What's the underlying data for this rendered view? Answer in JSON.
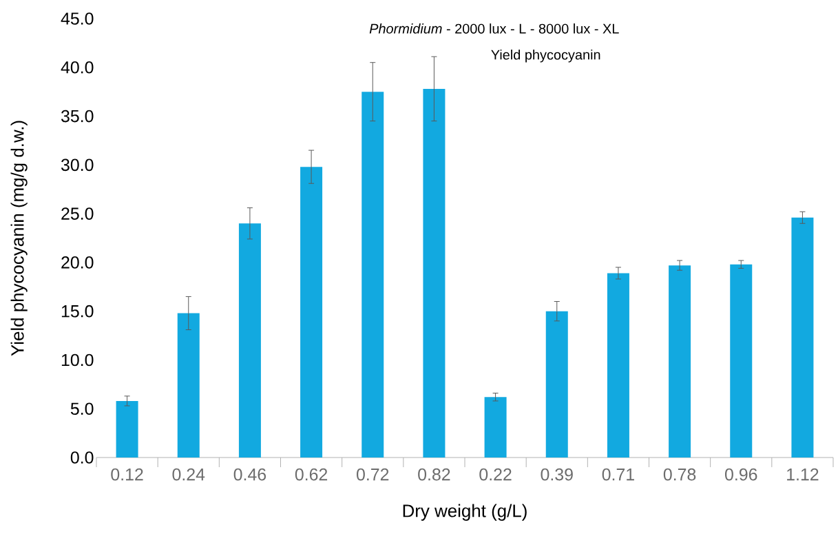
{
  "chart_data": {
    "type": "bar",
    "title": "*Phormidium* - 2000 lux - L                    -                    8000 lux - XL",
    "subtitle": "Yield phycocyanin",
    "xlabel": "Dry weight (g/L)",
    "ylabel": "Yield phycocyanin (mg/g d.w.)",
    "categories": [
      "0.12",
      "0.24",
      "0.46",
      "0.62",
      "0.72",
      "0.82",
      "0.22",
      "0.39",
      "0.71",
      "0.78",
      "0.96",
      "1.12"
    ],
    "values": [
      5.8,
      14.8,
      24.0,
      29.8,
      37.5,
      37.8,
      6.2,
      15.0,
      18.9,
      19.7,
      19.8,
      24.6
    ],
    "errors": [
      0.5,
      1.7,
      1.6,
      1.7,
      3.0,
      3.3,
      0.4,
      1.0,
      0.6,
      0.5,
      0.4,
      0.6
    ],
    "color": "#12a9e0",
    "ylim": [
      0,
      45
    ],
    "yticks": [
      {
        "value": 0,
        "label": "0.0"
      },
      {
        "value": 5,
        "label": "5.0"
      },
      {
        "value": 10,
        "label": "10.0"
      },
      {
        "value": 15,
        "label": "15.0"
      },
      {
        "value": 20,
        "label": "20.0"
      },
      {
        "value": 25,
        "label": "25.0"
      },
      {
        "value": 30,
        "label": "30.0"
      },
      {
        "value": 35,
        "label": "35.0"
      },
      {
        "value": 40,
        "label": "40.0"
      },
      {
        "value": 45,
        "label": "45.0"
      }
    ],
    "grid": false
  }
}
